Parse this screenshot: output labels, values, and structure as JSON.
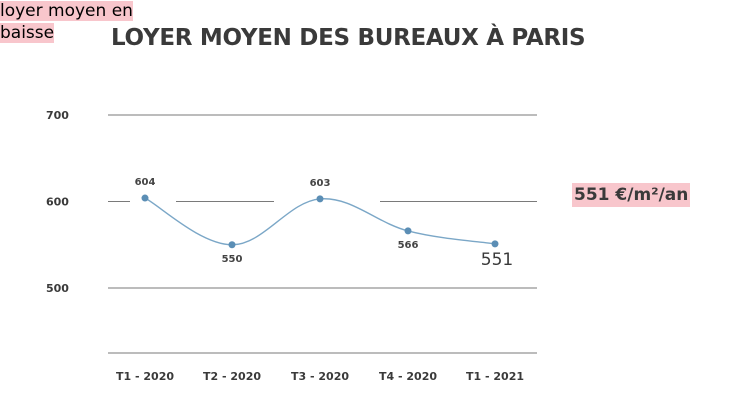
{
  "chart_data": {
    "type": "line",
    "title": "LOYER MOYEN DES BUREAUX À PARIS",
    "xlabel": "",
    "ylabel": "",
    "categories": [
      "T1 - 2020",
      "T2 - 2020",
      "T3 - 2020",
      "T4 - 2020",
      "T1 - 2021"
    ],
    "series": [
      {
        "name": "Loyer moyen",
        "values": [
          604,
          550,
          603,
          566,
          551
        ]
      }
    ],
    "data_labels": [
      "604",
      "550",
      "603",
      "566",
      "551"
    ],
    "yticks": [
      500,
      600,
      700
    ],
    "ytick_labels": [
      "500",
      "600",
      "700"
    ],
    "ylim": [
      423,
      776
    ],
    "grid": true,
    "line_color": "#7ba7c7",
    "marker_color": "#5b8eb5",
    "annotations": {
      "price": "551 €/m²/an",
      "trend": "loyer moyen en baisse"
    },
    "highlight_color": "#f8c6cc"
  }
}
